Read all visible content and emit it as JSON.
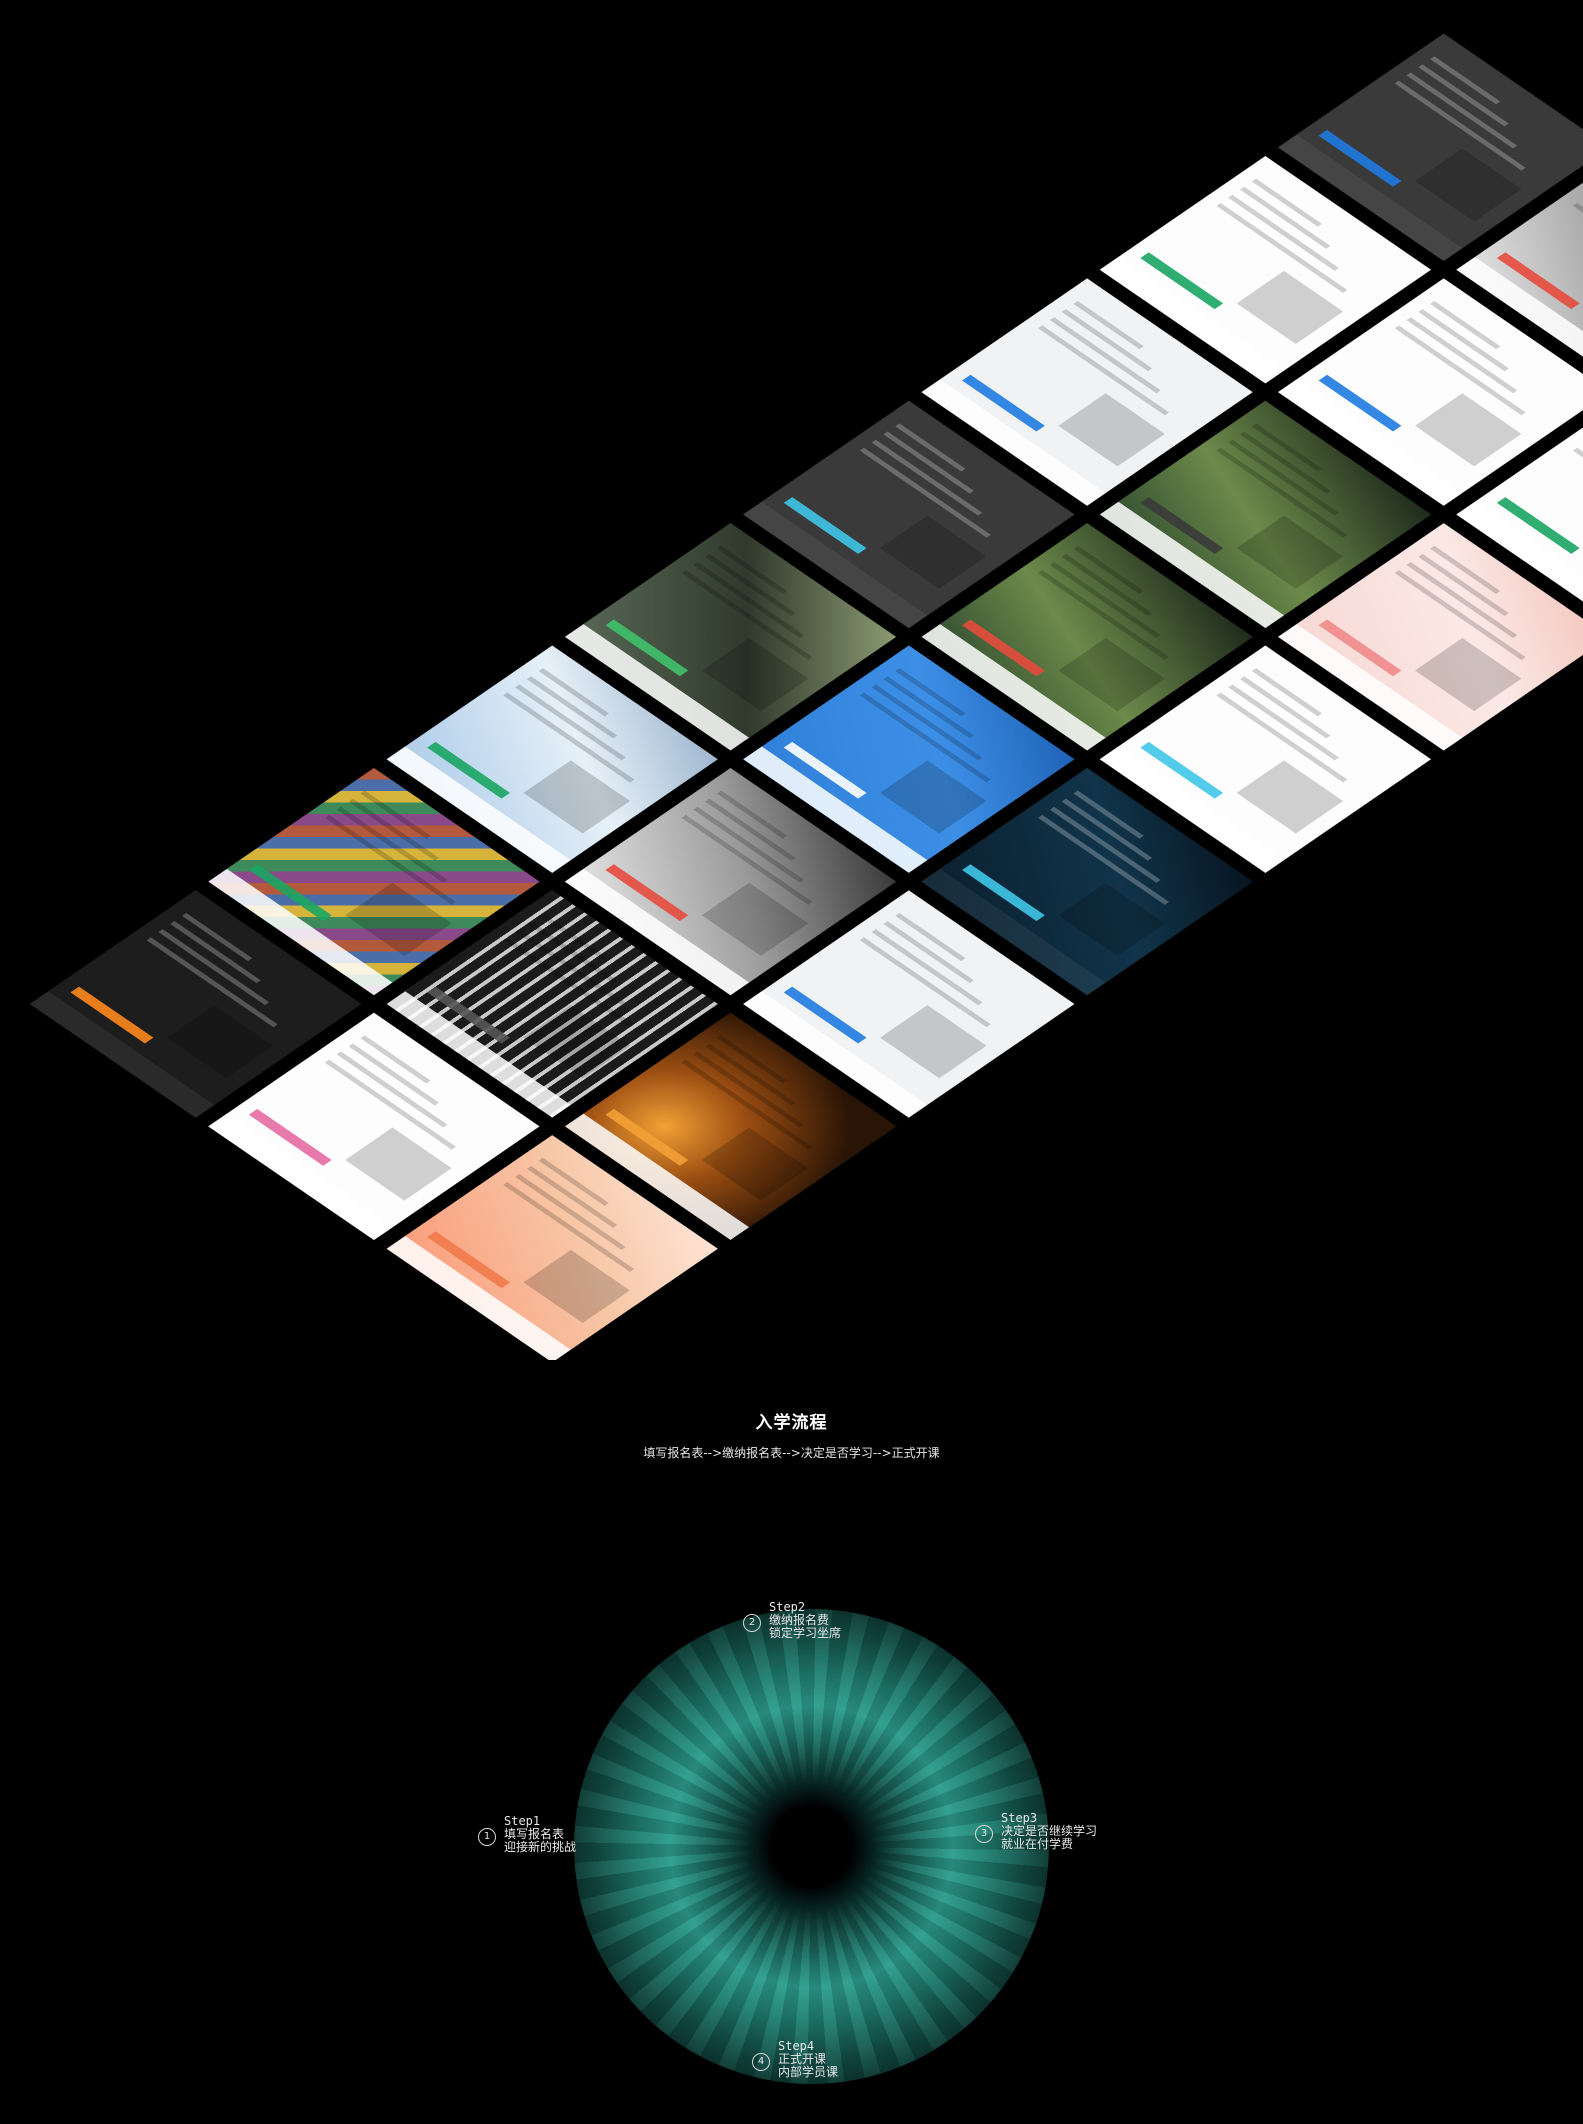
{
  "showcase": {
    "screenshots": [
      {
        "row": 0,
        "col": 0,
        "theme": "t-calc",
        "accent": "#ff8a1c",
        "name": "calculator-app-shot"
      },
      {
        "row": 0,
        "col": 1,
        "theme": "t-white",
        "accent": "#e66aa2",
        "name": "blog-profile-shot"
      },
      {
        "row": 0,
        "col": 2,
        "theme": "t-coral",
        "accent": "#f17a4a",
        "name": "crazy-summer-shop-shot"
      },
      {
        "row": 1,
        "col": 0,
        "theme": "t-collage",
        "accent": "#1aa562",
        "name": "photo-collage-shot"
      },
      {
        "row": 1,
        "col": 1,
        "theme": "t-arch",
        "accent": "#555555",
        "name": "architecture-photo-shot"
      },
      {
        "row": 1,
        "col": 2,
        "theme": "t-bokeh",
        "accent": "#f2a035",
        "name": "bokeh-portrait-shot"
      },
      {
        "row": 2,
        "col": 0,
        "theme": "t-sky",
        "accent": "#1aa562",
        "name": "clock-portal-shot"
      },
      {
        "row": 2,
        "col": 1,
        "theme": "t-mono",
        "accent": "#e54b3c",
        "name": "mono-portrait-shot"
      },
      {
        "row": 2,
        "col": 2,
        "theme": "t-light",
        "accent": "#1e7be1",
        "name": "admin-dashboard-shot"
      },
      {
        "row": 3,
        "col": 0,
        "theme": "t-photo",
        "accent": "#3fc16a",
        "name": "portrait-landing-shot"
      },
      {
        "row": 3,
        "col": 1,
        "theme": "t-blue",
        "accent": "#ffffff",
        "name": "blue-product-shot"
      },
      {
        "row": 3,
        "col": 2,
        "theme": "t-navy",
        "accent": "#3fc6e8",
        "name": "saas-system-shot"
      },
      {
        "row": 4,
        "col": 0,
        "theme": "t-dark",
        "accent": "#3fc6e8",
        "name": "dark-profile-shot"
      },
      {
        "row": 4,
        "col": 1,
        "theme": "t-forest",
        "accent": "#e54b3c",
        "name": "landscape-shot"
      },
      {
        "row": 4,
        "col": 2,
        "theme": "t-white",
        "accent": "#3fc6e8",
        "name": "chat-app-shot"
      },
      {
        "row": 5,
        "col": 0,
        "theme": "t-light",
        "accent": "#1e7be1",
        "name": "anime-portal-shot"
      },
      {
        "row": 5,
        "col": 1,
        "theme": "t-forest",
        "accent": "#3a3a3a",
        "name": "forest-portrait-shot"
      },
      {
        "row": 5,
        "col": 2,
        "theme": "t-pink",
        "accent": "#f08a8a",
        "name": "pink-calendar-shot"
      },
      {
        "row": 6,
        "col": 0,
        "theme": "t-white",
        "accent": "#1aa562",
        "name": "hello-world-portal-shot"
      },
      {
        "row": 6,
        "col": 1,
        "theme": "t-white",
        "accent": "#1e7be1",
        "name": "business-solutions-shot"
      },
      {
        "row": 6,
        "col": 2,
        "theme": "t-white",
        "accent": "#1aa562",
        "name": "game-portal-shot"
      },
      {
        "row": 7,
        "col": 0,
        "theme": "t-dark",
        "accent": "#1e7be1",
        "name": "dark-calendar-shot"
      },
      {
        "row": 7,
        "col": 1,
        "theme": "t-mono",
        "accent": "#e54b3c",
        "name": "desk-photo-shot"
      },
      {
        "row": 7,
        "col": 2,
        "theme": "t-grey",
        "accent": "#222222",
        "name": "chinese-title-shot"
      }
    ]
  },
  "process": {
    "title": "入学流程",
    "subtitle": "填写报名表-->缴纳报名表-->决定是否学习-->正式开课"
  },
  "steps": [
    {
      "number": "1",
      "label": "Step1",
      "line1": "填写报名表",
      "line2": "迎接新的挑战"
    },
    {
      "number": "2",
      "label": "Step2",
      "line1": "缴纳报名费",
      "line2": "锁定学习坐席"
    },
    {
      "number": "3",
      "label": "Step3",
      "line1": "决定是否继续学习",
      "line2": "就业在付学费"
    },
    {
      "number": "4",
      "label": "Step4",
      "line1": "正式开课",
      "line2": "内部学员课"
    }
  ]
}
